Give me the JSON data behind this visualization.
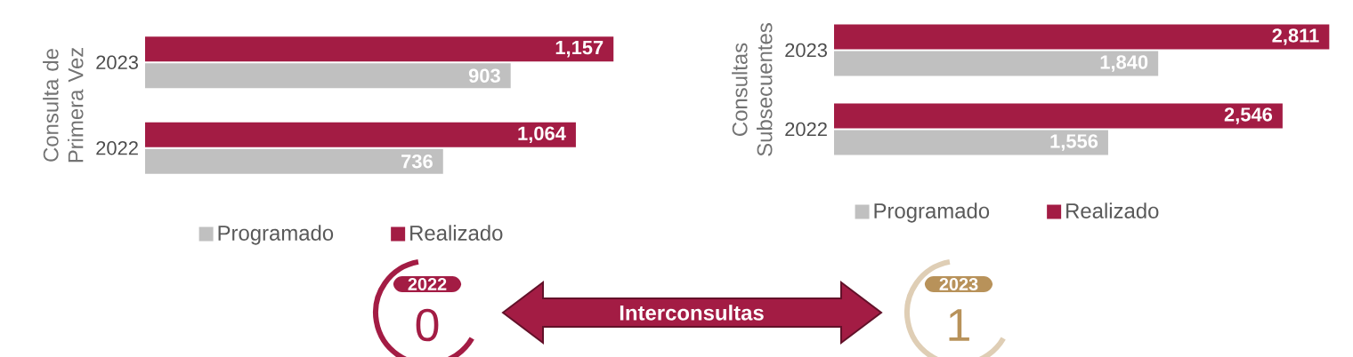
{
  "chart_data": [
    {
      "type": "bar",
      "orientation": "horizontal",
      "ylabel": "Consulta de Primera Vez",
      "categories": [
        "2023",
        "2022"
      ],
      "series": [
        {
          "name": "Programado",
          "color": "#c0c0c0",
          "values": [
            903,
            736
          ],
          "value_labels": [
            "903",
            "736"
          ]
        },
        {
          "name": "Realizado",
          "color": "#a31c44",
          "values": [
            1157,
            1064
          ],
          "value_labels": [
            "1,157",
            "1,064"
          ]
        }
      ],
      "legend": "bottom"
    },
    {
      "type": "bar",
      "orientation": "horizontal",
      "ylabel": "Consultas Subsecuentes",
      "categories": [
        "2023",
        "2022"
      ],
      "series": [
        {
          "name": "Programado",
          "color": "#c0c0c0",
          "values": [
            1840,
            1556
          ],
          "value_labels": [
            "1,840",
            "1,556"
          ]
        },
        {
          "name": "Realizado",
          "color": "#a31c44",
          "values": [
            2811,
            2546
          ],
          "value_labels": [
            "2,811",
            "2,546"
          ]
        }
      ],
      "legend": "bottom"
    },
    {
      "type": "other",
      "categories": [
        "2022",
        "2023"
      ],
      "values": [
        0,
        1
      ],
      "colors": [
        "#a31c44",
        "#b8925a"
      ],
      "annotations": [
        "Interconsultas"
      ],
      "data_labels": true
    }
  ]
}
